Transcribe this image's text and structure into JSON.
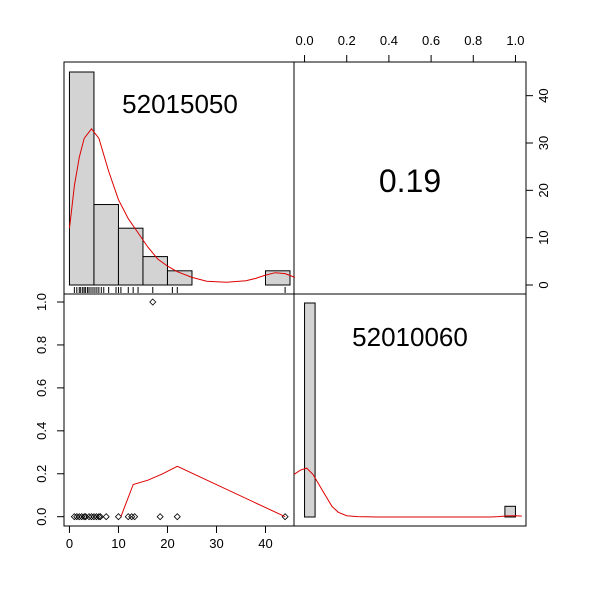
{
  "chart_data": {
    "type": "scatter-matrix",
    "variables": [
      "52015050",
      "52010060"
    ],
    "correlation": "0.19",
    "histogram_x": {
      "variable": "52015050",
      "bins": [
        0,
        5,
        10,
        15,
        20,
        25,
        30,
        35,
        40,
        45
      ],
      "counts": [
        45,
        17,
        12,
        6,
        3,
        0,
        0,
        0,
        3
      ],
      "count_axis": {
        "ticks": [
          "0",
          "10",
          "20",
          "30",
          "40"
        ],
        "ylim": [
          0,
          45
        ]
      },
      "density_curve": [
        [
          0,
          12
        ],
        [
          1,
          21
        ],
        [
          2,
          27
        ],
        [
          3,
          31
        ],
        [
          4.5,
          33
        ],
        [
          6,
          31
        ],
        [
          8,
          24
        ],
        [
          10,
          18
        ],
        [
          12,
          14
        ],
        [
          14,
          11
        ],
        [
          16,
          8
        ],
        [
          18,
          5.5
        ],
        [
          20,
          4
        ],
        [
          22,
          2.8
        ],
        [
          25,
          1.6
        ],
        [
          28,
          0.8
        ],
        [
          32,
          0.6
        ],
        [
          36,
          0.9
        ],
        [
          38,
          1.4
        ],
        [
          40,
          2.1
        ],
        [
          42,
          2.6
        ],
        [
          44,
          2.4
        ],
        [
          46,
          1.6
        ]
      ],
      "rug": [
        1,
        1.5,
        2,
        2.3,
        2.7,
        3,
        3.3,
        3.7,
        4,
        4.4,
        4.8,
        5.2,
        5.6,
        6,
        6.5,
        7,
        8,
        9.5,
        10,
        10.5,
        12,
        13,
        14,
        17,
        21,
        22,
        44
      ]
    },
    "histogram_y": {
      "variable": "52010060",
      "bins": [
        0,
        0.05,
        0.1,
        0.15,
        0.2,
        0.25,
        0.3,
        0.35,
        0.4,
        0.45,
        0.5,
        0.55,
        0.6,
        0.65,
        0.7,
        0.75,
        0.8,
        0.85,
        0.9,
        0.95,
        1.0
      ],
      "counts": [
        20,
        0,
        0,
        0,
        0,
        0,
        0,
        0,
        0,
        0,
        0,
        0,
        0,
        0,
        0,
        0,
        0,
        0,
        0,
        1
      ],
      "density_curve": [
        [
          -0.05,
          0.2
        ],
        [
          -0.02,
          0.22
        ],
        [
          0.01,
          0.23
        ],
        [
          0.04,
          0.2
        ],
        [
          0.07,
          0.15
        ],
        [
          0.1,
          0.1
        ],
        [
          0.13,
          0.05
        ],
        [
          0.16,
          0.022
        ],
        [
          0.2,
          0.006
        ],
        [
          0.25,
          0.002
        ],
        [
          0.35,
          0.0
        ],
        [
          0.5,
          0.0
        ],
        [
          0.7,
          0.0
        ],
        [
          0.88,
          0.0
        ],
        [
          0.92,
          0.002
        ],
        [
          0.96,
          0.005
        ],
        [
          1.0,
          0.006
        ],
        [
          1.03,
          0.004
        ]
      ]
    },
    "scatter": {
      "x_axis": {
        "ticks": [
          "0",
          "10",
          "20",
          "30",
          "40"
        ],
        "xlim": [
          -0.5,
          45
        ]
      },
      "y_axis": {
        "ticks": [
          "0.0",
          "0.2",
          "0.4",
          "0.6",
          "0.8",
          "1.0"
        ],
        "ylim": [
          -0.02,
          1.0
        ]
      },
      "points": [
        [
          1,
          0
        ],
        [
          1.5,
          0
        ],
        [
          2,
          0
        ],
        [
          2.5,
          0
        ],
        [
          3,
          0
        ],
        [
          3.3,
          0
        ],
        [
          4,
          0
        ],
        [
          4.5,
          0
        ],
        [
          5,
          0
        ],
        [
          5.5,
          0
        ],
        [
          6,
          0
        ],
        [
          6.3,
          0
        ],
        [
          7.5,
          0
        ],
        [
          10,
          0
        ],
        [
          12,
          0
        ],
        [
          12.7,
          0
        ],
        [
          13.3,
          0
        ],
        [
          18.5,
          0
        ],
        [
          22,
          0
        ],
        [
          44,
          0
        ],
        [
          17,
          1
        ]
      ],
      "smoother": [
        [
          10.5,
          0.0
        ],
        [
          13,
          0.15
        ],
        [
          16,
          0.17
        ],
        [
          19,
          0.2
        ],
        [
          22,
          0.235
        ],
        [
          44,
          0.0
        ]
      ]
    },
    "top_axis": {
      "ticks": [
        "0.0",
        "0.2",
        "0.4",
        "0.6",
        "0.8",
        "1.0"
      ],
      "xlim": [
        -0.05,
        1.05
      ]
    },
    "colors": {
      "bar_fill": "#d3d3d3",
      "curve": "#dd0000"
    }
  }
}
